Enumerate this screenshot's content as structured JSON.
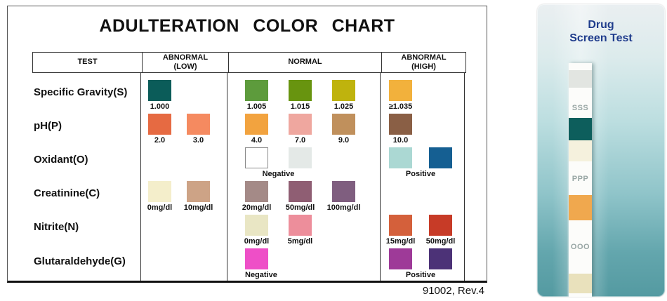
{
  "chart": {
    "title": "ADULTERATION COLOR CHART",
    "footnote": "91002, Rev.4",
    "headers": [
      "TEST",
      "ABNORMAL\n(LOW)",
      "NORMAL",
      "ABNORMAL\n(HIGH)"
    ],
    "rows": [
      {
        "test": "Specific Gravity(S)",
        "low": {
          "items": [
            {
              "color": "#0b5c59",
              "label": "1.000"
            }
          ]
        },
        "normal": {
          "items": [
            {
              "color": "#5d9b3c",
              "label": "1.005"
            },
            {
              "color": "#68940f",
              "label": "1.015"
            },
            {
              "color": "#bfb30d",
              "label": "1.025"
            }
          ]
        },
        "high": {
          "items": [
            {
              "color": "#f2b13c",
              "label": "≥1.035"
            }
          ]
        }
      },
      {
        "test": "pH(P)",
        "low": {
          "items": [
            {
              "color": "#e66a42",
              "label": "2.0"
            },
            {
              "color": "#f58a60",
              "label": "3.0"
            }
          ]
        },
        "normal": {
          "items": [
            {
              "color": "#f2a33f",
              "label": "4.0"
            },
            {
              "color": "#efa79f",
              "label": "7.0"
            },
            {
              "color": "#c0905c",
              "label": "9.0"
            }
          ]
        },
        "high": {
          "items": [
            {
              "color": "#8a5f45",
              "label": "10.0"
            }
          ]
        }
      },
      {
        "test": "Oxidant(O)",
        "low": {
          "items": []
        },
        "normal": {
          "items": [
            {
              "color": "#ffffff",
              "outlined": true
            },
            {
              "color": "#e4e9e7"
            }
          ],
          "group_label": "Negative"
        },
        "high": {
          "items": [
            {
              "color": "#abd8d3"
            },
            {
              "color": "#155f92"
            }
          ],
          "group_label": "Positive"
        }
      },
      {
        "test": "Creatinine(C)",
        "low": {
          "items": [
            {
              "color": "#f4eecb",
              "label": "0mg/dl"
            },
            {
              "color": "#cda386",
              "label": "10mg/dl"
            }
          ]
        },
        "normal": {
          "items": [
            {
              "color": "#a48a87",
              "label": "20mg/dl"
            },
            {
              "color": "#8f5e73",
              "label": "50mg/dl"
            },
            {
              "color": "#7f5e7f",
              "label": "100mg/dl"
            }
          ]
        },
        "high": {
          "items": []
        }
      },
      {
        "test": "Nitrite(N)",
        "low": {
          "items": []
        },
        "normal": {
          "items": [
            {
              "color": "#e9e6c4",
              "label": "0mg/dl"
            },
            {
              "color": "#ed8e9b",
              "label": "5mg/dl"
            }
          ]
        },
        "high": {
          "items": [
            {
              "color": "#d4603b",
              "label": "15mg/dl"
            },
            {
              "color": "#c73b27",
              "label": "50mg/dl"
            }
          ]
        }
      },
      {
        "test": "Glutaraldehyde(G)",
        "low": {
          "items": []
        },
        "normal": {
          "items": [
            {
              "color": "#ee4fc7"
            }
          ],
          "group_label": "Negative"
        },
        "high": {
          "items": [
            {
              "color": "#9e3a98"
            },
            {
              "color": "#4c3277"
            }
          ],
          "group_label": "Positive"
        }
      }
    ]
  },
  "strip": {
    "title": "Drug\nScreen Test",
    "title_color": "#1f3d8c",
    "segments": [
      {
        "kind": "gap",
        "h": 10
      },
      {
        "kind": "pad",
        "h": 25,
        "color": "#e2e5e1"
      },
      {
        "kind": "gap",
        "h": 23
      },
      {
        "kind": "label",
        "h": 12,
        "text": "SSS"
      },
      {
        "kind": "gap",
        "h": 8
      },
      {
        "kind": "pad",
        "h": 32,
        "color": "#0d5e5c"
      },
      {
        "kind": "pad",
        "h": 30,
        "color": "#f5f1dd"
      },
      {
        "kind": "gap",
        "h": 18
      },
      {
        "kind": "label",
        "h": 14,
        "text": "PPP"
      },
      {
        "kind": "gap",
        "h": 16
      },
      {
        "kind": "pad",
        "h": 36,
        "color": "#f0a84e"
      },
      {
        "kind": "gap",
        "h": 31
      },
      {
        "kind": "label",
        "h": 13,
        "text": "OOO"
      },
      {
        "kind": "gap",
        "h": 32
      },
      {
        "kind": "pad",
        "h": 28,
        "color": "#e9e1bc"
      }
    ]
  }
}
